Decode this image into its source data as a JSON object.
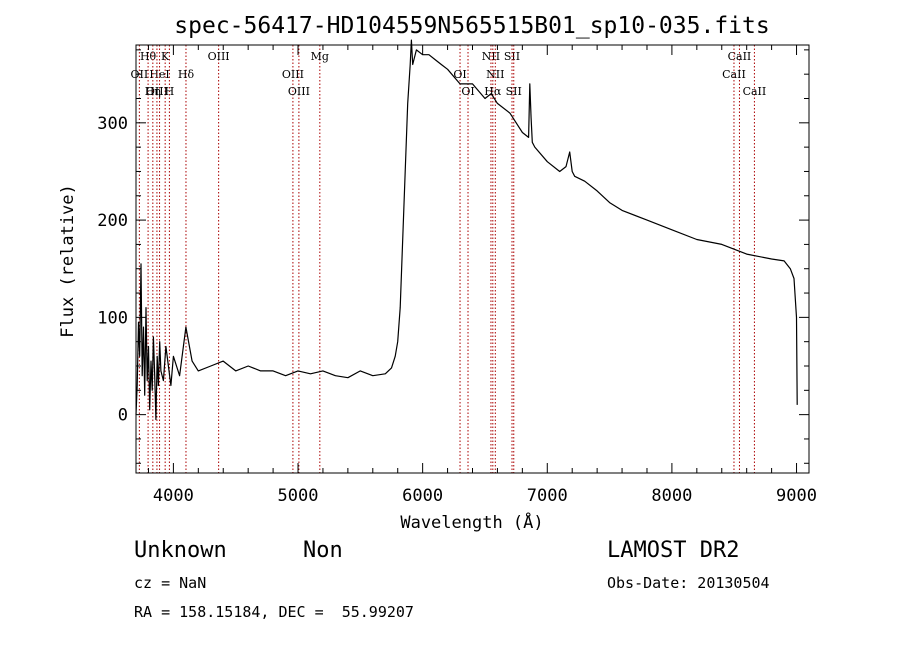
{
  "chart_data": {
    "type": "line",
    "title": "spec-56417-HD104559N565515B01_sp10-035.fits",
    "xlabel": "Wavelength (Å)",
    "ylabel": "Flux (relative)",
    "xlim": [
      3700,
      9100
    ],
    "ylim": [
      -60,
      380
    ],
    "xticks": [
      4000,
      5000,
      6000,
      7000,
      8000,
      9000
    ],
    "yticks": [
      0,
      100,
      200,
      300
    ],
    "grid": false,
    "series": [
      {
        "x": [
          3700,
          3710,
          3720,
          3730,
          3740,
          3750,
          3760,
          3770,
          3780,
          3790,
          3800,
          3810,
          3820,
          3830,
          3840,
          3850,
          3860,
          3870,
          3880,
          3890,
          3900,
          3920,
          3940,
          3960,
          3980,
          4000,
          4050,
          4100,
          4150,
          4200,
          4300,
          4400,
          4500,
          4600,
          4700,
          4800,
          4900,
          5000,
          5100,
          5200,
          5300,
          5400,
          5500,
          5600,
          5700,
          5750,
          5780,
          5800,
          5820,
          5840,
          5860,
          5880,
          5900,
          5910,
          5920,
          5950,
          6000,
          6050,
          6100,
          6150,
          6200,
          6300,
          6400,
          6500,
          6550,
          6600,
          6700,
          6800,
          6850,
          6860,
          6870,
          6880,
          6900,
          7000,
          7100,
          7150,
          7180,
          7200,
          7220,
          7300,
          7400,
          7500,
          7600,
          7800,
          8000,
          8200,
          8400,
          8600,
          8800,
          8900,
          8950,
          8980,
          9000,
          9005
        ],
        "y": [
          0,
          30,
          95,
          60,
          155,
          40,
          90,
          20,
          110,
          35,
          70,
          5,
          55,
          25,
          80,
          40,
          -5,
          60,
          30,
          75,
          45,
          35,
          70,
          50,
          30,
          60,
          40,
          90,
          55,
          45,
          50,
          55,
          45,
          50,
          45,
          45,
          40,
          45,
          42,
          45,
          40,
          38,
          45,
          40,
          42,
          48,
          60,
          75,
          110,
          180,
          250,
          320,
          360,
          385,
          360,
          375,
          370,
          370,
          365,
          360,
          355,
          340,
          340,
          325,
          330,
          320,
          310,
          290,
          285,
          340,
          305,
          280,
          275,
          260,
          250,
          255,
          270,
          250,
          245,
          240,
          230,
          218,
          210,
          200,
          190,
          180,
          175,
          165,
          160,
          158,
          150,
          140,
          100,
          10
        ]
      }
    ],
    "spectral_lines": [
      {
        "name": "Hθ",
        "x": 3797,
        "row": 0
      },
      {
        "name": "K",
        "x": 3934,
        "row": 0
      },
      {
        "name": "OIII",
        "x": 4363,
        "row": 0
      },
      {
        "name": "Mg",
        "x": 5175,
        "row": 0
      },
      {
        "name": "NII",
        "x": 6548,
        "row": 0
      },
      {
        "name": "SII",
        "x": 6717,
        "row": 0
      },
      {
        "name": "CaII",
        "x": 8542,
        "row": 0
      },
      {
        "name": "OII",
        "x": 3727,
        "row": 1
      },
      {
        "name": "HeI",
        "x": 3889,
        "row": 1
      },
      {
        "name": "Hδ",
        "x": 4101,
        "row": 1
      },
      {
        "name": "OIII",
        "x": 4959,
        "row": 1
      },
      {
        "name": "OI",
        "x": 6300,
        "row": 1
      },
      {
        "name": "NII",
        "x": 6583,
        "row": 1
      },
      {
        "name": "CaII",
        "x": 8498,
        "row": 1
      },
      {
        "name": "OIII",
        "x": 3868,
        "row": 2
      },
      {
        "name": "Hη",
        "x": 3835,
        "row": 2
      },
      {
        "name": "H",
        "x": 3968,
        "row": 2
      },
      {
        "name": "OIII",
        "x": 5007,
        "row": 2
      },
      {
        "name": "OI",
        "x": 6364,
        "row": 2
      },
      {
        "name": "Hα",
        "x": 6563,
        "row": 2
      },
      {
        "name": "SII",
        "x": 6731,
        "row": 2
      },
      {
        "name": "CaII",
        "x": 8662,
        "row": 2
      }
    ],
    "line_color": "#aa0000"
  },
  "footer": {
    "class": "Unknown",
    "subclass": "Non",
    "survey": "LAMOST DR2",
    "cz": "cz = NaN",
    "obs_date": "Obs-Date: 20130504",
    "coords": "RA = 158.15184, DEC =  55.99207"
  }
}
